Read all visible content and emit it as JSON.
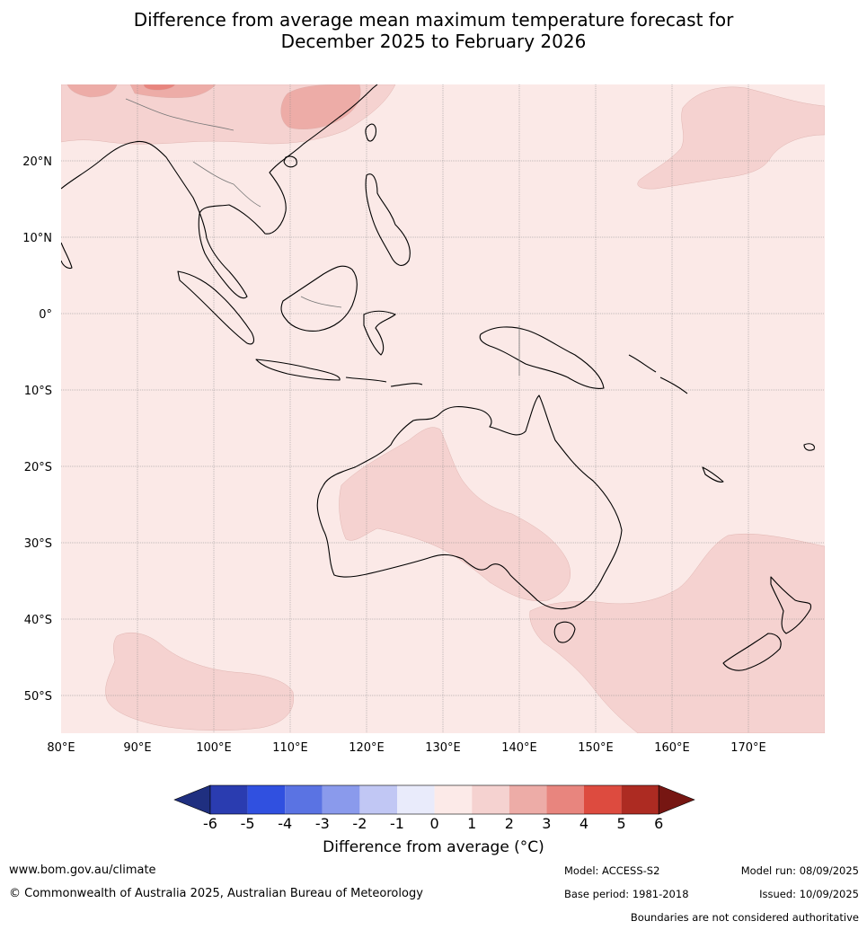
{
  "title": {
    "line1": "Difference from average mean maximum temperature forecast for",
    "line2": "December 2025 to February 2026"
  },
  "map": {
    "lon_ticks": [
      "80°E",
      "90°E",
      "100°E",
      "110°E",
      "120°E",
      "130°E",
      "140°E",
      "150°E",
      "160°E",
      "170°E"
    ],
    "lat_ticks": [
      "20°N",
      "10°N",
      "0°",
      "10°S",
      "20°S",
      "30°S",
      "40°S",
      "50°S"
    ],
    "lon_range": [
      80,
      180
    ],
    "lat_range": [
      -55,
      30
    ],
    "background_color": "#fbe9e7",
    "anomaly_zones": [
      {
        "label": "Australia interior",
        "category": "1 to 2",
        "color": "#f5d2d0"
      },
      {
        "label": "Southern Ocean / Tasman",
        "category": "1 to 2",
        "color": "#f5d2d0"
      },
      {
        "label": "Southern Indian Ocean",
        "category": "1 to 2",
        "color": "#f5d2d0"
      },
      {
        "label": "North Pacific",
        "category": "1 to 2",
        "color": "#f5d2d0"
      },
      {
        "label": "South China",
        "category": "2 to 3",
        "color": "#edaca7"
      },
      {
        "label": "Tibet",
        "category": "3 to 4",
        "color": "#e8857e"
      }
    ]
  },
  "colorbar": {
    "ticks": [
      "-6",
      "-5",
      "-4",
      "-3",
      "-2",
      "-1",
      "0",
      "1",
      "2",
      "3",
      "4",
      "5",
      "6"
    ],
    "colors": [
      "#1f2f80",
      "#2a3cb0",
      "#3050e0",
      "#5a73e3",
      "#8a9aec",
      "#c1c7f4",
      "#e9ebfb",
      "#fceae8",
      "#f5d2d0",
      "#edaca7",
      "#e8857e",
      "#dd4b3f",
      "#ad2b22",
      "#761612"
    ],
    "label": "Difference from average (°C)"
  },
  "footer": {
    "url": "www.bom.gov.au/climate",
    "copyright": "© Commonwealth of Australia 2025, Australian Bureau of Meteorology",
    "model": "Model: ACCESS-S2",
    "base_period": "Base period: 1981-2018",
    "model_run": "Model run: 08/09/2025",
    "issued": "Issued: 10/09/2025",
    "disclaimer": "Boundaries are not considered authoritative"
  }
}
